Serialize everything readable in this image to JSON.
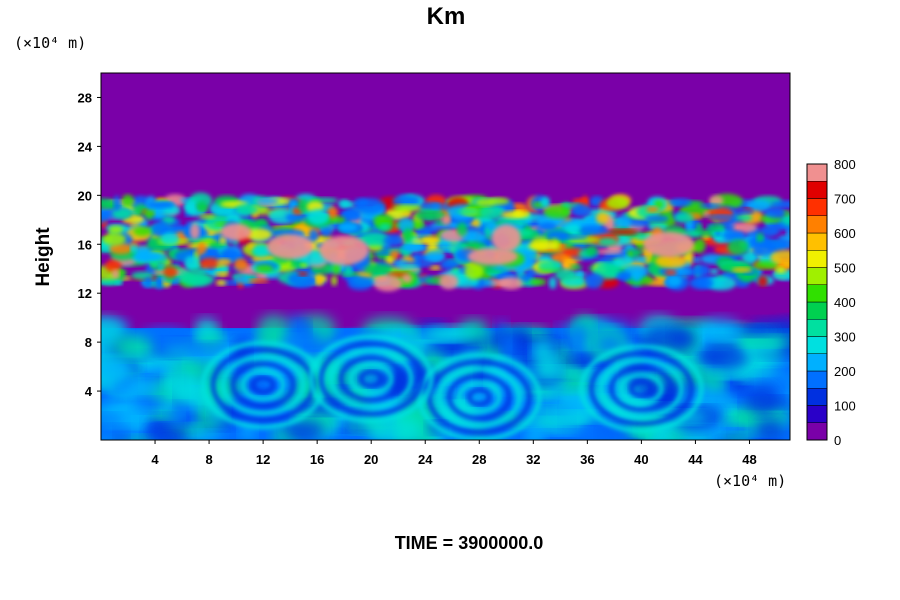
{
  "chart_data": {
    "type": "heatmap",
    "title": "Km",
    "ylabel": "Height",
    "y_unit": "(×10⁴ m)",
    "x_unit": "(×10⁴ m)",
    "x_ticks": [
      "4",
      "8",
      "12",
      "16",
      "20",
      "24",
      "28",
      "32",
      "36",
      "40",
      "44",
      "48"
    ],
    "y_ticks": [
      "4",
      "8",
      "12",
      "16",
      "20",
      "24",
      "28"
    ],
    "xlim": [
      0,
      51
    ],
    "ylim": [
      0,
      30
    ],
    "colorbar": {
      "min": 0,
      "max": 800,
      "ticks": [
        "0",
        "100",
        "200",
        "300",
        "400",
        "500",
        "600",
        "700",
        "800"
      ],
      "colors": [
        "#7a00a8",
        "#2a00c8",
        "#0030e0",
        "#0070ff",
        "#00b0ff",
        "#00e0e0",
        "#00e0a0",
        "#00d050",
        "#30e000",
        "#a0f000",
        "#f0f000",
        "#ffc000",
        "#ff8000",
        "#ff3000",
        "#e00000",
        "#f09090"
      ]
    },
    "regions": [
      {
        "band": "upper turbulent layer",
        "y_range": [
          12.8,
          19.6
        ],
        "x_range": [
          0,
          51
        ],
        "value_range": [
          0,
          800
        ]
      },
      {
        "band": "quiet layer",
        "y_range": [
          9.8,
          12.8
        ],
        "x_range": [
          0,
          51
        ],
        "value_range": [
          0,
          0
        ]
      },
      {
        "band": "lower eddy layer",
        "y_range": [
          0,
          9.8
        ],
        "x_range": [
          0,
          51
        ],
        "value_range": [
          100,
          350
        ]
      },
      {
        "band": "top quiet layer",
        "y_range": [
          19.6,
          30
        ],
        "x_range": [
          0,
          51
        ],
        "value_range": [
          0,
          0
        ]
      }
    ],
    "legend_placement": "right",
    "grid": false
  },
  "footer": {
    "time_label": "TIME = 3900000.0"
  }
}
